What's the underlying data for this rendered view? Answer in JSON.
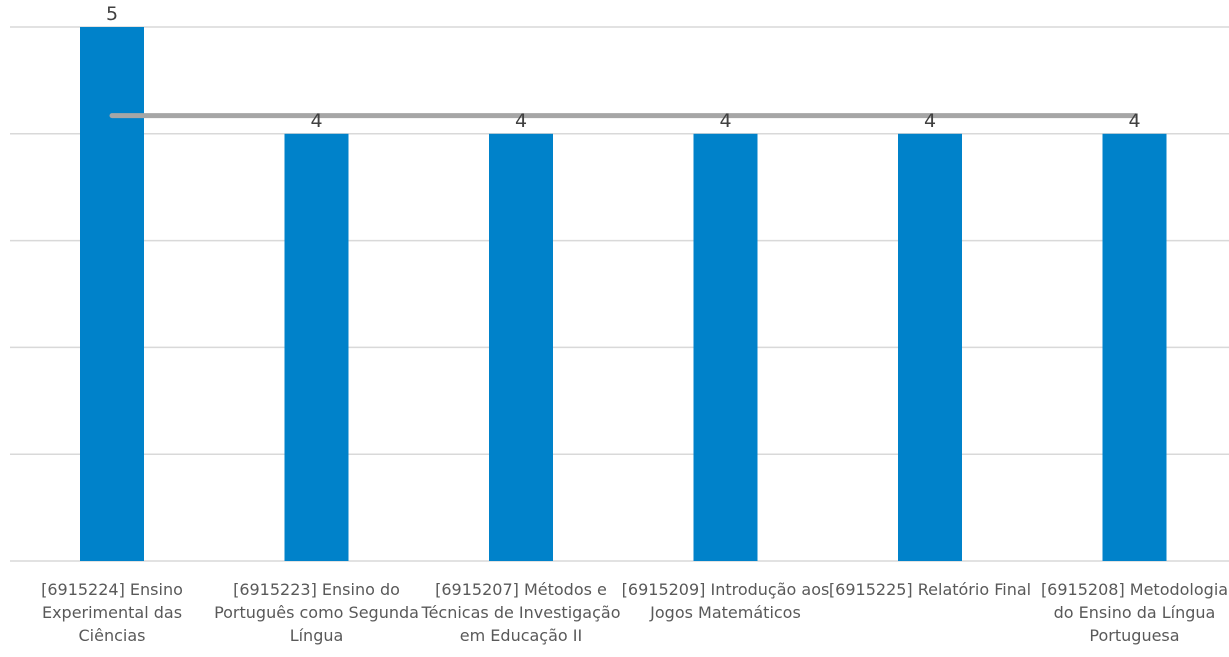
{
  "chart_data": {
    "type": "bar",
    "categories": [
      "[6915224] Ensino Experimental das Ciências",
      "[6915223] Ensino do Português como Segunda Língua",
      "[6915207] Métodos e Técnicas de Investigação em Educação II",
      "[6915209] Introdução aos Jogos Matemáticos",
      "[6915225] Relatório Final",
      "[6915208] Metodologia do Ensino da Língua Portuguesa"
    ],
    "series": [
      {
        "type": "bar",
        "values": [
          5,
          4,
          4,
          4,
          4,
          4
        ],
        "color": "#0082CA"
      },
      {
        "type": "line",
        "values": [
          4.17,
          4.17,
          4.17,
          4.17,
          4.17,
          4.17
        ],
        "color": "#A6A6A6"
      }
    ],
    "data_labels": [
      "5",
      "4",
      "4",
      "4",
      "4",
      "4"
    ],
    "ylim": [
      0,
      5
    ],
    "grid": true,
    "title": "",
    "xlabel": "",
    "ylabel": ""
  }
}
